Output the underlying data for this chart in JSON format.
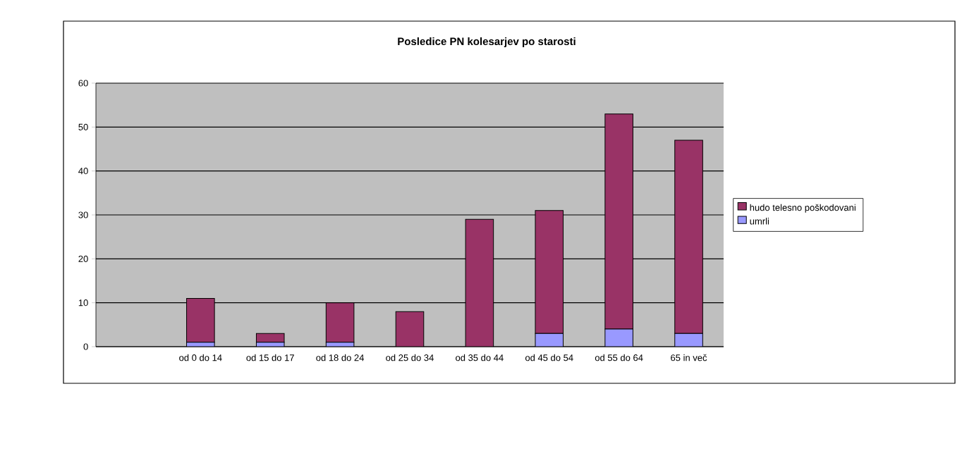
{
  "chart_data": {
    "type": "bar",
    "title": "Posledice PN kolesarjev po starosti",
    "stacked": true,
    "categories": [
      null,
      "od 0 do 14",
      "od 15 do 17",
      "od 18 do 24",
      "od 25 do 34",
      "od 35 do 44",
      "od 45 do 54",
      "od 55 do 64",
      "65 in več"
    ],
    "series": [
      {
        "name": "umrli",
        "color": "#9999ff",
        "values": [
          null,
          1,
          1,
          1,
          0,
          0,
          3,
          4,
          3
        ]
      },
      {
        "name": "hudo telesno poškodovani",
        "color": "#993366",
        "values": [
          null,
          10,
          2,
          9,
          8,
          29,
          28,
          49,
          44
        ]
      }
    ],
    "ylim": [
      0,
      60
    ],
    "yticks": [
      0,
      10,
      20,
      30,
      40,
      50,
      60
    ],
    "grid": "y",
    "legend": "right"
  }
}
